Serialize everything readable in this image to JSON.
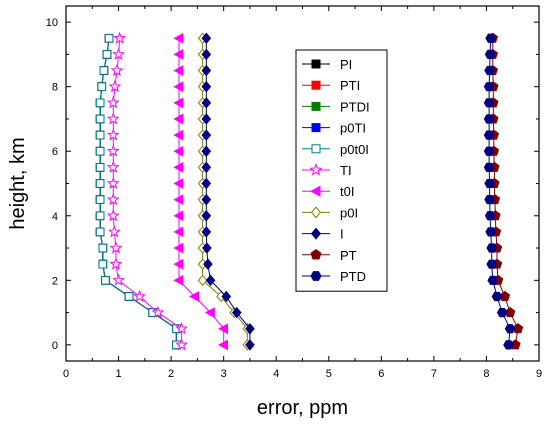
{
  "chart_data": {
    "type": "line",
    "xlabel": "error, ppm",
    "ylabel": "height, km",
    "xlim": [
      0,
      9
    ],
    "ylim": [
      -0.5,
      10.5
    ],
    "xticks": [
      0,
      1,
      2,
      3,
      4,
      5,
      6,
      7,
      8,
      9
    ],
    "yticks": [
      0,
      2,
      4,
      6,
      8,
      10
    ],
    "grid": false,
    "legend_position": "top-center",
    "series": [
      {
        "name": "PI",
        "color": "#000000",
        "marker": "square",
        "filled": true,
        "x": [
          2.1,
          2.1,
          1.65,
          1.2,
          0.75,
          0.7,
          0.7,
          0.65,
          0.65,
          0.65,
          0.65,
          0.65,
          0.65,
          0.65,
          0.65,
          0.65,
          0.68,
          0.72,
          0.78,
          0.82
        ],
        "y": [
          0,
          0.5,
          1.0,
          1.5,
          2.0,
          2.5,
          3.0,
          3.5,
          4.0,
          4.5,
          5.0,
          5.5,
          6.0,
          6.5,
          7.0,
          7.5,
          8.0,
          8.5,
          9.0,
          9.5
        ]
      },
      {
        "name": "PTI",
        "color": "#ff0000",
        "marker": "square",
        "filled": true,
        "x": [
          2.1,
          2.1,
          1.65,
          1.2,
          0.75,
          0.7,
          0.7,
          0.65,
          0.65,
          0.65,
          0.65,
          0.65,
          0.65,
          0.65,
          0.65,
          0.65,
          0.68,
          0.72,
          0.78,
          0.82
        ],
        "y": [
          0,
          0.5,
          1.0,
          1.5,
          2.0,
          2.5,
          3.0,
          3.5,
          4.0,
          4.5,
          5.0,
          5.5,
          6.0,
          6.5,
          7.0,
          7.5,
          8.0,
          8.5,
          9.0,
          9.5
        ]
      },
      {
        "name": "PTDI",
        "color": "#008000",
        "marker": "square",
        "filled": true,
        "x": [
          2.1,
          2.1,
          1.65,
          1.2,
          0.75,
          0.7,
          0.7,
          0.65,
          0.65,
          0.65,
          0.65,
          0.65,
          0.65,
          0.65,
          0.65,
          0.65,
          0.68,
          0.72,
          0.78,
          0.82
        ],
        "y": [
          0,
          0.5,
          1.0,
          1.5,
          2.0,
          2.5,
          3.0,
          3.5,
          4.0,
          4.5,
          5.0,
          5.5,
          6.0,
          6.5,
          7.0,
          7.5,
          8.0,
          8.5,
          9.0,
          9.5
        ]
      },
      {
        "name": "p0TI",
        "color": "#0000ff",
        "marker": "square",
        "filled": true,
        "x": [
          2.1,
          2.1,
          1.65,
          1.2,
          0.75,
          0.7,
          0.7,
          0.65,
          0.65,
          0.65,
          0.65,
          0.65,
          0.65,
          0.65,
          0.65,
          0.65,
          0.68,
          0.72,
          0.78,
          0.82
        ],
        "y": [
          0,
          0.5,
          1.0,
          1.5,
          2.0,
          2.5,
          3.0,
          3.5,
          4.0,
          4.5,
          5.0,
          5.5,
          6.0,
          6.5,
          7.0,
          7.5,
          8.0,
          8.5,
          9.0,
          9.5
        ]
      },
      {
        "name": "p0t0I",
        "color": "#008080",
        "marker": "square",
        "filled": false,
        "x": [
          2.1,
          2.1,
          1.65,
          1.2,
          0.75,
          0.7,
          0.7,
          0.65,
          0.65,
          0.65,
          0.65,
          0.65,
          0.65,
          0.65,
          0.65,
          0.65,
          0.68,
          0.72,
          0.78,
          0.82
        ],
        "y": [
          0,
          0.5,
          1.0,
          1.5,
          2.0,
          2.5,
          3.0,
          3.5,
          4.0,
          4.5,
          5.0,
          5.5,
          6.0,
          6.5,
          7.0,
          7.5,
          8.0,
          8.5,
          9.0,
          9.5
        ]
      },
      {
        "name": "TI",
        "color": "#ff00ff",
        "marker": "star",
        "filled": false,
        "x": [
          2.2,
          2.2,
          1.75,
          1.4,
          1.0,
          0.95,
          0.95,
          0.92,
          0.9,
          0.9,
          0.9,
          0.9,
          0.9,
          0.9,
          0.9,
          0.9,
          0.93,
          0.97,
          1.0,
          1.02
        ],
        "y": [
          0,
          0.5,
          1.0,
          1.5,
          2.0,
          2.5,
          3.0,
          3.5,
          4.0,
          4.5,
          5.0,
          5.5,
          6.0,
          6.5,
          7.0,
          7.5,
          8.0,
          8.5,
          9.0,
          9.5
        ]
      },
      {
        "name": "t0I",
        "color": "#ff00ff",
        "marker": "triangle-left",
        "filled": true,
        "x": [
          3.0,
          3.0,
          2.75,
          2.45,
          2.15,
          2.15,
          2.15,
          2.15,
          2.15,
          2.15,
          2.15,
          2.15,
          2.15,
          2.15,
          2.15,
          2.15,
          2.15,
          2.15,
          2.15,
          2.15
        ],
        "y": [
          0,
          0.5,
          1.0,
          1.5,
          2.0,
          2.5,
          3.0,
          3.5,
          4.0,
          4.5,
          5.0,
          5.5,
          6.0,
          6.5,
          7.0,
          7.5,
          8.0,
          8.5,
          9.0,
          9.5
        ]
      },
      {
        "name": "p0I",
        "color": "#808000",
        "marker": "diamond",
        "filled": false,
        "x": [
          3.45,
          3.45,
          3.2,
          2.95,
          2.6,
          2.6,
          2.6,
          2.6,
          2.6,
          2.6,
          2.6,
          2.6,
          2.6,
          2.6,
          2.6,
          2.6,
          2.6,
          2.6,
          2.6,
          2.6
        ],
        "y": [
          0,
          0.5,
          1.0,
          1.5,
          2.0,
          2.5,
          3.0,
          3.5,
          4.0,
          4.5,
          5.0,
          5.5,
          6.0,
          6.5,
          7.0,
          7.5,
          8.0,
          8.5,
          9.0,
          9.5
        ]
      },
      {
        "name": "I",
        "color": "#000080",
        "marker": "diamond",
        "filled": true,
        "x": [
          3.5,
          3.5,
          3.25,
          3.05,
          2.75,
          2.7,
          2.68,
          2.67,
          2.67,
          2.67,
          2.67,
          2.67,
          2.67,
          2.67,
          2.67,
          2.67,
          2.67,
          2.67,
          2.67,
          2.67
        ],
        "y": [
          0,
          0.5,
          1.0,
          1.5,
          2.0,
          2.5,
          3.0,
          3.5,
          4.0,
          4.5,
          5.0,
          5.5,
          6.0,
          6.5,
          7.0,
          7.5,
          8.0,
          8.5,
          9.0,
          9.5
        ]
      },
      {
        "name": "PT",
        "color": "#800000",
        "marker": "pentagon",
        "filled": true,
        "x": [
          8.55,
          8.6,
          8.45,
          8.35,
          8.22,
          8.2,
          8.2,
          8.18,
          8.17,
          8.16,
          8.15,
          8.15,
          8.14,
          8.14,
          8.13,
          8.13,
          8.13,
          8.12,
          8.12,
          8.12
        ],
        "y": [
          0,
          0.5,
          1.0,
          1.5,
          2.0,
          2.5,
          3.0,
          3.5,
          4.0,
          4.5,
          5.0,
          5.5,
          6.0,
          6.5,
          7.0,
          7.5,
          8.0,
          8.5,
          9.0,
          9.5
        ]
      },
      {
        "name": "PTD",
        "color": "#000080",
        "marker": "hexagon",
        "filled": true,
        "x": [
          8.42,
          8.45,
          8.3,
          8.2,
          8.12,
          8.1,
          8.1,
          8.08,
          8.07,
          8.06,
          8.06,
          8.05,
          8.05,
          8.05,
          8.05,
          8.05,
          8.05,
          8.06,
          8.07,
          8.08
        ],
        "y": [
          0,
          0.5,
          1.0,
          1.5,
          2.0,
          2.5,
          3.0,
          3.5,
          4.0,
          4.5,
          5.0,
          5.5,
          6.0,
          6.5,
          7.0,
          7.5,
          8.0,
          8.5,
          9.0,
          9.5
        ]
      }
    ]
  }
}
